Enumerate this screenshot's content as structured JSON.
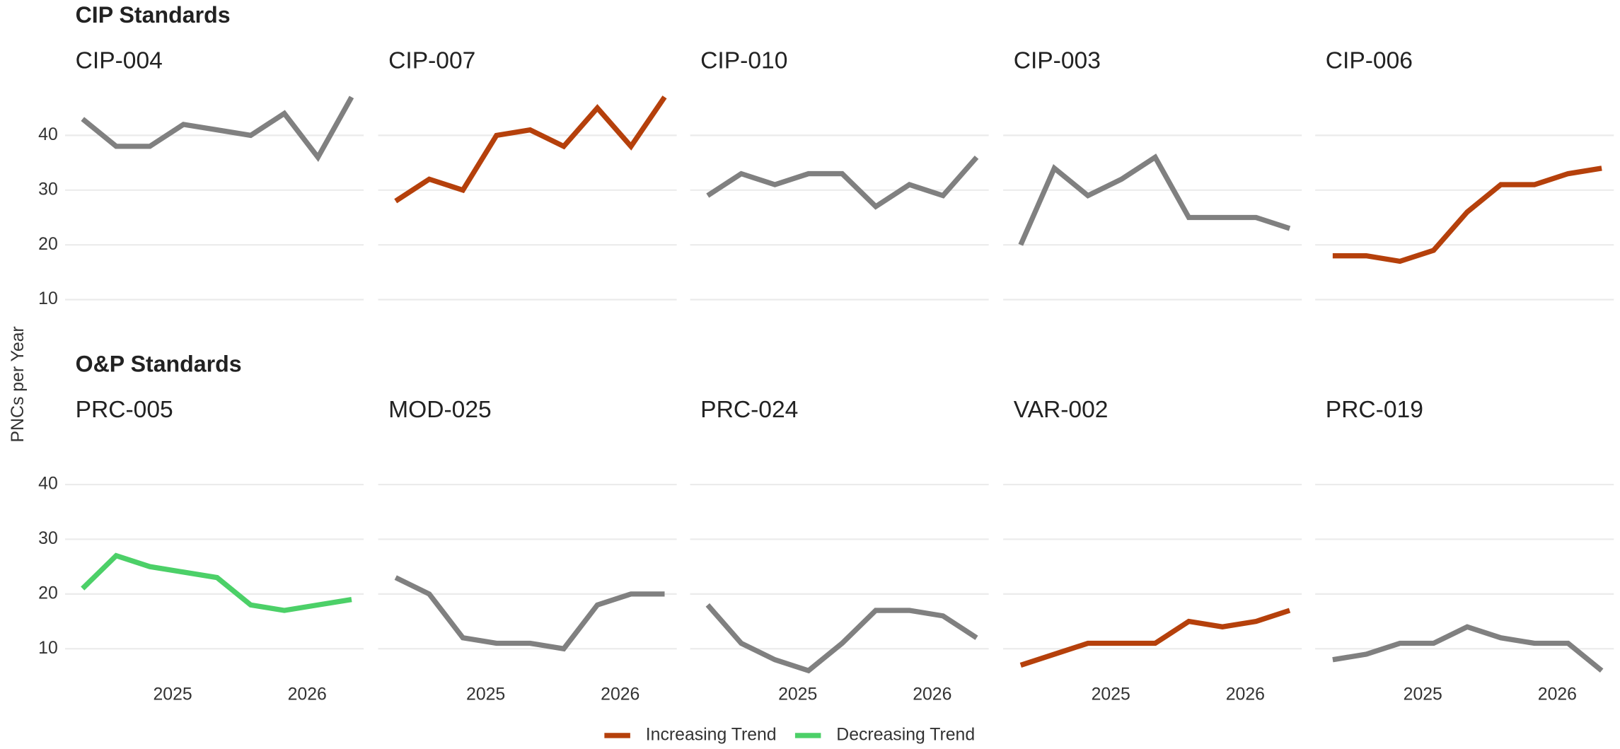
{
  "groups": [
    {
      "title": "CIP Standards"
    },
    {
      "title": "O&P Standards"
    }
  ],
  "y_label": "PNCs per Year",
  "legend": [
    {
      "name": "Increasing Trend",
      "color": "#b5400b"
    },
    {
      "name": "Decreasing Trend",
      "color": "#4cd068"
    }
  ],
  "chart_data": [
    {
      "type": "line",
      "title": "CIP-004",
      "color": "#808080",
      "x": [
        2024.33,
        2024.58,
        2024.83,
        2025.08,
        2025.33,
        2025.58,
        2025.83,
        2026.08,
        2026.33
      ],
      "values": [
        43,
        38,
        38,
        42,
        41,
        40,
        44,
        36,
        47
      ],
      "xlim": [
        2024.2,
        2026.42
      ],
      "ylim": [
        5,
        48
      ],
      "yticks": [
        10,
        20,
        30,
        40
      ],
      "grid": true
    },
    {
      "type": "line",
      "title": "CIP-007",
      "color": "#b5400b",
      "x": [
        2024.33,
        2024.58,
        2024.83,
        2025.08,
        2025.33,
        2025.58,
        2025.83,
        2026.08,
        2026.33
      ],
      "values": [
        28,
        32,
        30,
        40,
        41,
        38,
        45,
        38,
        47
      ],
      "xlim": [
        2024.2,
        2026.42
      ],
      "ylim": [
        5,
        48
      ],
      "yticks": [
        10,
        20,
        30,
        40
      ],
      "grid": true
    },
    {
      "type": "line",
      "title": "CIP-010",
      "color": "#808080",
      "x": [
        2024.33,
        2024.58,
        2024.83,
        2025.08,
        2025.33,
        2025.58,
        2025.83,
        2026.08,
        2026.33
      ],
      "values": [
        29,
        33,
        31,
        33,
        33,
        27,
        31,
        29,
        36
      ],
      "xlim": [
        2024.2,
        2026.42
      ],
      "ylim": [
        5,
        48
      ],
      "yticks": [
        10,
        20,
        30,
        40
      ],
      "grid": true
    },
    {
      "type": "line",
      "title": "CIP-003",
      "color": "#808080",
      "x": [
        2024.33,
        2024.58,
        2024.83,
        2025.08,
        2025.33,
        2025.58,
        2025.83,
        2026.08,
        2026.33
      ],
      "values": [
        20,
        34,
        29,
        32,
        36,
        25,
        25,
        25,
        23
      ],
      "xlim": [
        2024.2,
        2026.42
      ],
      "ylim": [
        5,
        48
      ],
      "yticks": [
        10,
        20,
        30,
        40
      ],
      "grid": true
    },
    {
      "type": "line",
      "title": "CIP-006",
      "color": "#b5400b",
      "x": [
        2024.33,
        2024.58,
        2024.83,
        2025.08,
        2025.33,
        2025.58,
        2025.83,
        2026.08,
        2026.33
      ],
      "values": [
        18,
        18,
        17,
        19,
        26,
        31,
        31,
        33,
        34
      ],
      "xlim": [
        2024.2,
        2026.42
      ],
      "ylim": [
        5,
        48
      ],
      "yticks": [
        10,
        20,
        30,
        40
      ],
      "grid": true
    },
    {
      "type": "line",
      "title": "PRC-005",
      "color": "#4cd068",
      "x": [
        2024.33,
        2024.58,
        2024.83,
        2025.08,
        2025.33,
        2025.58,
        2025.83,
        2026.08,
        2026.33
      ],
      "values": [
        21,
        27,
        25,
        24,
        23,
        18,
        17,
        18,
        19
      ],
      "xlim": [
        2024.2,
        2026.42
      ],
      "ylim": [
        5,
        48
      ],
      "xticks": [
        2025,
        2026
      ],
      "yticks": [
        10,
        20,
        30,
        40
      ],
      "grid": true
    },
    {
      "type": "line",
      "title": "MOD-025",
      "color": "#808080",
      "x": [
        2024.33,
        2024.58,
        2024.83,
        2025.08,
        2025.33,
        2025.58,
        2025.83,
        2026.08,
        2026.33
      ],
      "values": [
        23,
        20,
        12,
        11,
        11,
        10,
        18,
        20,
        20
      ],
      "xlim": [
        2024.2,
        2026.42
      ],
      "ylim": [
        5,
        48
      ],
      "xticks": [
        2025,
        2026
      ],
      "yticks": [
        10,
        20,
        30,
        40
      ],
      "grid": true
    },
    {
      "type": "line",
      "title": "PRC-024",
      "color": "#808080",
      "x": [
        2024.33,
        2024.58,
        2024.83,
        2025.08,
        2025.33,
        2025.58,
        2025.83,
        2026.08,
        2026.33
      ],
      "values": [
        18,
        11,
        8,
        6,
        11,
        17,
        17,
        16,
        12
      ],
      "xlim": [
        2024.2,
        2026.42
      ],
      "ylim": [
        5,
        48
      ],
      "xticks": [
        2025,
        2026
      ],
      "yticks": [
        10,
        20,
        30,
        40
      ],
      "grid": true
    },
    {
      "type": "line",
      "title": "VAR-002",
      "color": "#b5400b",
      "x": [
        2024.33,
        2024.58,
        2024.83,
        2025.08,
        2025.33,
        2025.58,
        2025.83,
        2026.08,
        2026.33
      ],
      "values": [
        7,
        9,
        11,
        11,
        11,
        15,
        14,
        15,
        17
      ],
      "xlim": [
        2024.2,
        2026.42
      ],
      "ylim": [
        5,
        48
      ],
      "xticks": [
        2025,
        2026
      ],
      "yticks": [
        10,
        20,
        30,
        40
      ],
      "grid": true
    },
    {
      "type": "line",
      "title": "PRC-019",
      "color": "#808080",
      "x": [
        2024.33,
        2024.58,
        2024.83,
        2025.08,
        2025.33,
        2025.58,
        2025.83,
        2026.08,
        2026.33
      ],
      "values": [
        8,
        9,
        11,
        11,
        14,
        12,
        11,
        11,
        6
      ],
      "xlim": [
        2024.2,
        2026.42
      ],
      "ylim": [
        5,
        48
      ],
      "xticks": [
        2025,
        2026
      ],
      "yticks": [
        10,
        20,
        30,
        40
      ],
      "grid": true
    }
  ]
}
